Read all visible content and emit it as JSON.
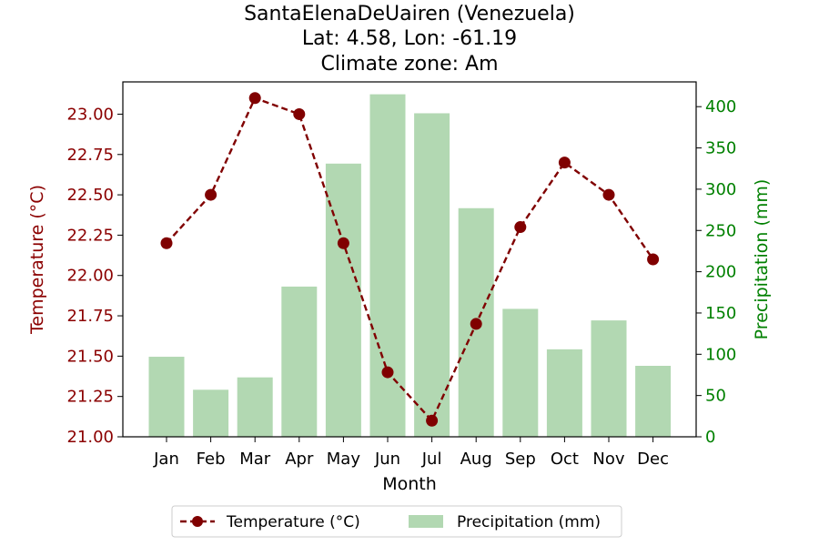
{
  "chart_data": {
    "type": "bar+line",
    "title_lines": [
      "SantaElenaDeUairen (Venezuela)",
      "Lat: 4.58, Lon: -61.19",
      "Climate zone: Am"
    ],
    "xlabel": "Month",
    "categories": [
      "Jan",
      "Feb",
      "Mar",
      "Apr",
      "May",
      "Jun",
      "Jul",
      "Aug",
      "Sep",
      "Oct",
      "Nov",
      "Dec"
    ],
    "series": [
      {
        "name": "Temperature (°C)",
        "type": "line",
        "axis": "left",
        "color": "#800000",
        "style": "dashed with circle markers",
        "values": [
          22.2,
          22.5,
          23.1,
          23.0,
          22.2,
          21.4,
          21.1,
          21.7,
          22.3,
          22.7,
          22.5,
          22.1
        ]
      },
      {
        "name": "Precipitation (mm)",
        "type": "bar",
        "axis": "right",
        "color": "#b2d8b2",
        "values": [
          97,
          57,
          72,
          182,
          331,
          415,
          392,
          277,
          155,
          106,
          141,
          86
        ]
      }
    ],
    "y_left": {
      "label": "Temperature (°C)",
      "color": "#8b0000",
      "range": [
        21.0,
        23.2
      ],
      "ticks": [
        "21.00",
        "21.25",
        "21.50",
        "21.75",
        "22.00",
        "22.25",
        "22.50",
        "22.75",
        "23.00"
      ]
    },
    "y_right": {
      "label": "Precipitation (mm)",
      "color": "#008000",
      "range": [
        0,
        430
      ],
      "ticks": [
        "0",
        "50",
        "100",
        "150",
        "200",
        "250",
        "300",
        "350",
        "400"
      ]
    },
    "legend": {
      "placement": "bottom-center",
      "entries": [
        "Temperature (°C)",
        "Precipitation (mm)"
      ]
    },
    "grid": false
  }
}
